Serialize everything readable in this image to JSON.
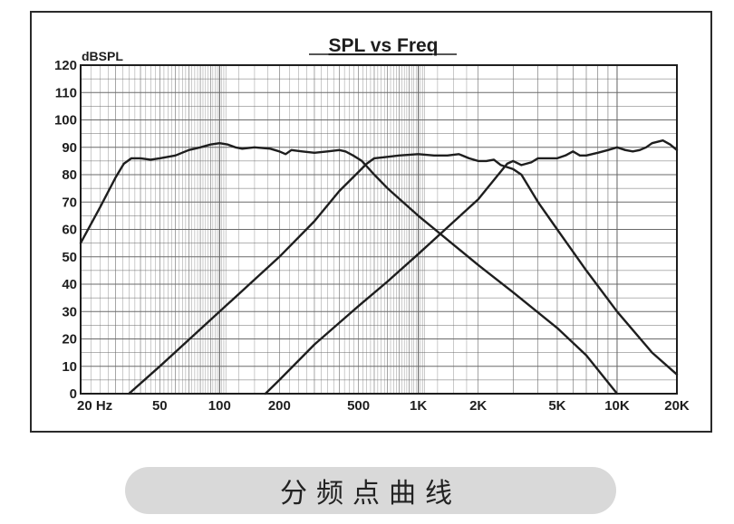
{
  "chart_data": {
    "type": "line",
    "title": "SPL vs Freq",
    "ylabel": "dBSPL",
    "xlabel": "",
    "x_scale": "log",
    "xlim": [
      20,
      20000
    ],
    "ylim": [
      0,
      120
    ],
    "y_ticks": [
      0,
      10,
      20,
      30,
      40,
      50,
      60,
      70,
      80,
      90,
      100,
      110,
      120
    ],
    "x_tick_labels": [
      {
        "f": 20,
        "label": "20  Hz"
      },
      {
        "f": 50,
        "label": "50"
      },
      {
        "f": 100,
        "label": "100"
      },
      {
        "f": 200,
        "label": "200"
      },
      {
        "f": 500,
        "label": "500"
      },
      {
        "f": 1000,
        "label": "1K"
      },
      {
        "f": 2000,
        "label": "2K"
      },
      {
        "f": 5000,
        "label": "5K"
      },
      {
        "f": 10000,
        "label": "10K"
      },
      {
        "f": 20000,
        "label": "20K"
      }
    ],
    "grid": true,
    "series": [
      {
        "points": [
          [
            20,
            55
          ],
          [
            25,
            68
          ],
          [
            30,
            79
          ],
          [
            33,
            84
          ],
          [
            36,
            86
          ],
          [
            40,
            86
          ],
          [
            45,
            85.5
          ],
          [
            50,
            86
          ],
          [
            60,
            87
          ],
          [
            70,
            89
          ],
          [
            80,
            90
          ],
          [
            90,
            91
          ],
          [
            100,
            91.5
          ],
          [
            110,
            91
          ],
          [
            120,
            90
          ],
          [
            130,
            89.5
          ],
          [
            150,
            90
          ],
          [
            180,
            89.5
          ],
          [
            200,
            88.5
          ],
          [
            215,
            87.5
          ],
          [
            230,
            89
          ],
          [
            260,
            88.5
          ],
          [
            300,
            88
          ],
          [
            350,
            88.5
          ],
          [
            400,
            89
          ],
          [
            430,
            88.5
          ],
          [
            470,
            87
          ],
          [
            520,
            85
          ],
          [
            600,
            80
          ],
          [
            700,
            75
          ],
          [
            1000,
            65
          ],
          [
            2000,
            47
          ],
          [
            3000,
            37
          ],
          [
            5000,
            24
          ],
          [
            7000,
            14
          ],
          [
            10000,
            0
          ]
        ]
      },
      {
        "points": [
          [
            35,
            0
          ],
          [
            50,
            10
          ],
          [
            100,
            30
          ],
          [
            200,
            50
          ],
          [
            300,
            63
          ],
          [
            400,
            74
          ],
          [
            500,
            81
          ],
          [
            550,
            84
          ],
          [
            600,
            86
          ],
          [
            700,
            86.5
          ],
          [
            800,
            87
          ],
          [
            1000,
            87.5
          ],
          [
            1200,
            87
          ],
          [
            1400,
            87
          ],
          [
            1600,
            87.5
          ],
          [
            1800,
            86
          ],
          [
            2000,
            85
          ],
          [
            2200,
            85
          ],
          [
            2400,
            85.5
          ],
          [
            2600,
            83.5
          ],
          [
            3000,
            82
          ],
          [
            3300,
            80
          ],
          [
            4000,
            70
          ],
          [
            5000,
            60
          ],
          [
            7000,
            45
          ],
          [
            10000,
            30
          ],
          [
            15000,
            15
          ],
          [
            20000,
            7
          ]
        ]
      },
      {
        "points": [
          [
            170,
            0
          ],
          [
            200,
            5
          ],
          [
            300,
            18
          ],
          [
            500,
            32
          ],
          [
            700,
            41
          ],
          [
            1000,
            51
          ],
          [
            2000,
            71
          ],
          [
            2800,
            84
          ],
          [
            3000,
            85
          ],
          [
            3300,
            83.5
          ],
          [
            3700,
            84.5
          ],
          [
            4000,
            86
          ],
          [
            4500,
            86
          ],
          [
            5000,
            86
          ],
          [
            5500,
            87
          ],
          [
            6000,
            88.5
          ],
          [
            6500,
            87
          ],
          [
            7000,
            87
          ],
          [
            8000,
            88
          ],
          [
            9000,
            89
          ],
          [
            10000,
            90
          ],
          [
            11000,
            89
          ],
          [
            12000,
            88.5
          ],
          [
            13000,
            89
          ],
          [
            14000,
            90
          ],
          [
            15000,
            91.5
          ],
          [
            17000,
            92.5
          ],
          [
            18500,
            91
          ],
          [
            20000,
            89
          ]
        ]
      }
    ]
  },
  "caption": "分频点曲线",
  "colors": {
    "line": "#1e1e1e",
    "grid": "#6a6a6a",
    "caption_bg": "#d9d9d9"
  }
}
